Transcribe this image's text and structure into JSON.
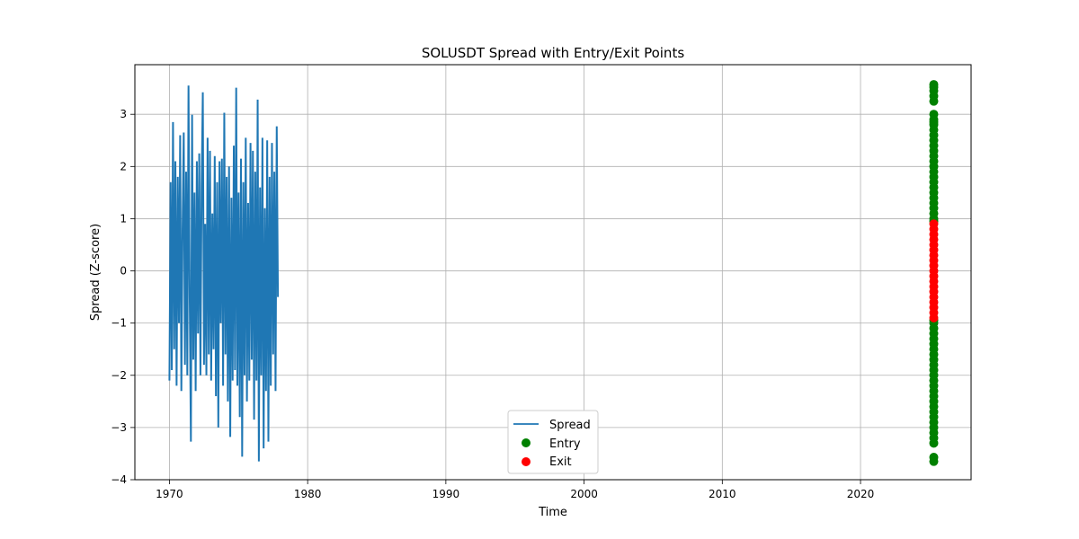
{
  "chart_data": {
    "type": "line",
    "title": "SOLUSDT Spread with Entry/Exit Points",
    "xlabel": "Time",
    "ylabel": "Spread (Z-score)",
    "xlim": [
      1967.5,
      2028.0
    ],
    "ylim": [
      -4.0,
      3.95
    ],
    "xticks": [
      1970,
      1980,
      1990,
      2000,
      2010,
      2020
    ],
    "xtick_labels": [
      "1970",
      "1980",
      "1990",
      "2000",
      "2010",
      "2020"
    ],
    "yticks": [
      -4,
      -3,
      -2,
      -1,
      0,
      1,
      2,
      3
    ],
    "ytick_labels": [
      "−4",
      "−3",
      "−2",
      "−1",
      "0",
      "1",
      "2",
      "3"
    ],
    "grid": true,
    "legend_position": "bottom-center",
    "series": [
      {
        "name": "Spread",
        "kind": "line",
        "color": "#1f77b4",
        "x_start": 1970.0,
        "x_end": 1977.85,
        "values": [
          -2.1,
          1.7,
          -1.9,
          2.85,
          -1.5,
          2.1,
          -2.2,
          1.8,
          -1.0,
          2.6,
          -2.3,
          0.8,
          2.65,
          -1.8,
          1.9,
          -2.0,
          3.55,
          -0.5,
          -3.27,
          2.99,
          -1.7,
          1.5,
          -2.3,
          2.1,
          -1.2,
          2.25,
          -2.0,
          1.6,
          3.42,
          -1.8,
          0.9,
          -2.0,
          2.55,
          -1.6,
          2.3,
          -2.1,
          1.1,
          -1.5,
          2.2,
          -2.4,
          1.7,
          -3.0,
          2.1,
          -1.0,
          2.15,
          -2.2,
          3.03,
          -1.6,
          1.8,
          -2.5,
          2.0,
          -3.18,
          1.4,
          -2.1,
          2.4,
          -1.9,
          3.51,
          -2.2,
          1.5,
          -2.8,
          2.15,
          -3.56,
          1.7,
          -2.0,
          2.55,
          -2.5,
          1.3,
          -2.1,
          2.45,
          -1.7,
          2.3,
          -2.85,
          1.9,
          -2.1,
          3.28,
          -3.65,
          1.6,
          -2.0,
          2.55,
          -3.4,
          1.2,
          -2.3,
          2.5,
          -3.27,
          1.8,
          -2.2,
          2.45,
          -1.6,
          1.9,
          -2.3,
          2.77,
          -0.5
        ]
      },
      {
        "name": "Entry",
        "kind": "scatter",
        "color": "#008000",
        "x": 2025.3,
        "y": [
          3.57,
          3.52,
          3.45,
          3.35,
          3.25,
          3.0,
          2.9,
          2.85,
          2.8,
          2.7,
          2.6,
          2.5,
          2.4,
          2.3,
          2.2,
          2.1,
          2.0,
          1.9,
          1.8,
          1.7,
          1.6,
          1.5,
          1.4,
          1.3,
          1.2,
          1.1,
          1.0,
          0.95,
          -0.95,
          -1.0,
          -1.1,
          -1.2,
          -1.3,
          -1.4,
          -1.5,
          -1.6,
          -1.7,
          -1.8,
          -1.9,
          -2.0,
          -2.1,
          -2.2,
          -2.3,
          -2.4,
          -2.5,
          -2.6,
          -2.7,
          -2.8,
          -2.9,
          -3.0,
          -3.1,
          -3.2,
          -3.3,
          -3.57,
          -3.65
        ]
      },
      {
        "name": "Exit",
        "kind": "scatter",
        "color": "#ff0000",
        "x": 2025.3,
        "y": [
          0.9,
          0.8,
          0.7,
          0.6,
          0.5,
          0.4,
          0.3,
          0.2,
          0.1,
          0.0,
          -0.1,
          -0.2,
          -0.3,
          -0.4,
          -0.5,
          -0.6,
          -0.7,
          -0.8,
          -0.9
        ]
      }
    ]
  }
}
